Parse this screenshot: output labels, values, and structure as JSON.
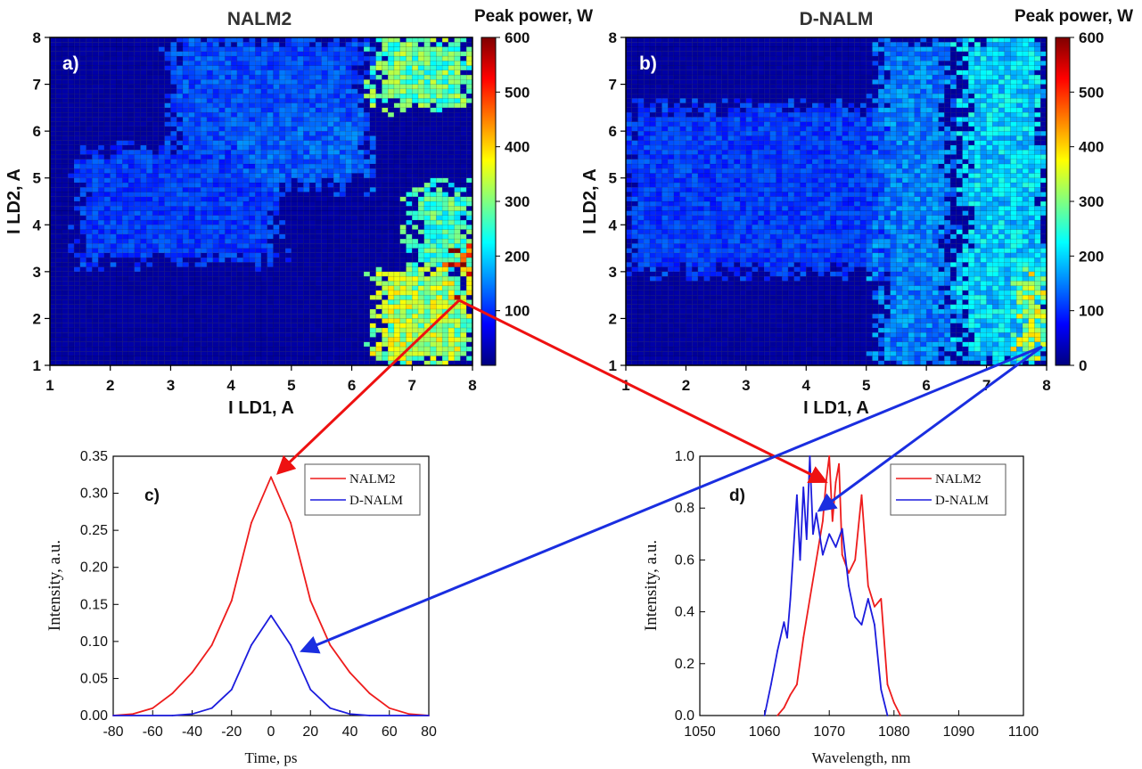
{
  "colors": {
    "nalm2": "#ee1c1c",
    "dnalm": "#1c1cdd",
    "arrow_red": "#ee1111",
    "arrow_blue": "#1a2ee0",
    "colormap": [
      "#00007f",
      "#0000ff",
      "#0080ff",
      "#00ffff",
      "#80ff80",
      "#ffff00",
      "#ff8000",
      "#ff0000",
      "#7f0000"
    ]
  },
  "chart_data": [
    {
      "id": "a",
      "type": "heatmap",
      "panel_label": "a)",
      "title": "NALM2",
      "xlabel": "I LD1, A",
      "ylabel": "I LD2, A",
      "xlim": [
        1,
        8
      ],
      "ylim": [
        1,
        8
      ],
      "xticks": [
        "1",
        "2",
        "3",
        "4",
        "5",
        "6",
        "7",
        "8"
      ],
      "yticks": [
        "1",
        "2",
        "3",
        "4",
        "5",
        "6",
        "7",
        "8"
      ],
      "grid": true,
      "colorbar": {
        "label": "Peak power, W",
        "range": [
          0,
          600
        ],
        "ticks": [
          "100",
          "200",
          "300",
          "400",
          "500",
          "600"
        ]
      },
      "value_regions": [
        {
          "note": "background",
          "value": 20
        },
        {
          "x": [
            3.0,
            6.2
          ],
          "y": [
            5.2,
            8.0
          ],
          "value": 120
        },
        {
          "x": [
            1.5,
            4.8
          ],
          "y": [
            3.2,
            5.6
          ],
          "value": 110
        },
        {
          "x": [
            4.2,
            6.2
          ],
          "y": [
            4.8,
            6.4
          ],
          "value": 130
        },
        {
          "x": [
            6.4,
            8.0
          ],
          "y": [
            6.5,
            8.0
          ],
          "value": 280
        },
        {
          "x": [
            7.0,
            8.0
          ],
          "y": [
            3.0,
            4.8
          ],
          "value": 260
        },
        {
          "x": [
            6.4,
            8.0
          ],
          "y": [
            1.0,
            3.0
          ],
          "value": 320
        },
        {
          "x": [
            7.7,
            8.0
          ],
          "y": [
            2.6,
            3.6
          ],
          "value": 500
        }
      ]
    },
    {
      "id": "b",
      "type": "heatmap",
      "panel_label": "b)",
      "title": "D-NALM",
      "xlabel": "I LD1, A",
      "ylabel": "I LD2, A",
      "xlim": [
        1,
        8
      ],
      "ylim": [
        1,
        8
      ],
      "xticks": [
        "1",
        "2",
        "3",
        "4",
        "5",
        "6",
        "7",
        "8"
      ],
      "yticks": [
        "1",
        "2",
        "3",
        "4",
        "5",
        "6",
        "7",
        "8"
      ],
      "grid": true,
      "colorbar": {
        "label": "Peak power, W",
        "range": [
          0,
          600
        ],
        "ticks": [
          "0",
          "100",
          "200",
          "300",
          "400",
          "500",
          "600"
        ]
      },
      "value_regions": [
        {
          "note": "background",
          "value": 20
        },
        {
          "x": [
            1.0,
            6.0
          ],
          "y": [
            3.0,
            6.5
          ],
          "value": 110
        },
        {
          "x": [
            5.2,
            6.4
          ],
          "y": [
            1.0,
            8.0
          ],
          "value": 150
        },
        {
          "x": [
            6.6,
            8.0
          ],
          "y": [
            1.0,
            8.0
          ],
          "value": 200
        },
        {
          "x": [
            7.6,
            8.0
          ],
          "y": [
            1.2,
            3.0
          ],
          "value": 330
        }
      ]
    },
    {
      "id": "c",
      "type": "line",
      "panel_label": "c)",
      "xlabel": "Time, ps",
      "ylabel": "Intensity, a.u.",
      "xlim": [
        -80,
        80
      ],
      "ylim": [
        0,
        0.35
      ],
      "xticks": [
        "-80",
        "-60",
        "-40",
        "-20",
        "0",
        "20",
        "40",
        "60",
        "80"
      ],
      "yticks": [
        "0.00",
        "0.05",
        "0.10",
        "0.15",
        "0.20",
        "0.25",
        "0.30",
        "0.35"
      ],
      "legend_position": "top-right",
      "series": [
        {
          "name": "NALM2",
          "color_key": "nalm2",
          "x": [
            -80,
            -70,
            -60,
            -50,
            -40,
            -30,
            -20,
            -10,
            0,
            10,
            20,
            30,
            40,
            50,
            60,
            70,
            80
          ],
          "y": [
            0.0,
            0.002,
            0.01,
            0.03,
            0.058,
            0.095,
            0.155,
            0.26,
            0.322,
            0.26,
            0.155,
            0.095,
            0.058,
            0.03,
            0.01,
            0.002,
            0.0
          ]
        },
        {
          "name": "D-NALM",
          "color_key": "dnalm",
          "x": [
            -80,
            -50,
            -40,
            -30,
            -20,
            -10,
            0,
            10,
            20,
            30,
            40,
            50,
            80
          ],
          "y": [
            0.0,
            0.0,
            0.002,
            0.01,
            0.035,
            0.095,
            0.135,
            0.095,
            0.035,
            0.01,
            0.002,
            0.0,
            0.0
          ]
        }
      ]
    },
    {
      "id": "d",
      "type": "line",
      "panel_label": "d)",
      "xlabel": "Wavelength, nm",
      "ylabel": "Intensity, a.u.",
      "xlim": [
        1050,
        1100
      ],
      "ylim": [
        0,
        1.0
      ],
      "xticks": [
        "1050",
        "1060",
        "1070",
        "1080",
        "1090",
        "1100"
      ],
      "yticks": [
        "0.0",
        "0.2",
        "0.4",
        "0.6",
        "0.8",
        "1.0"
      ],
      "legend_position": "top-right",
      "series": [
        {
          "name": "NALM2",
          "color_key": "nalm2",
          "x": [
            1062,
            1063,
            1064,
            1065,
            1066,
            1067,
            1068,
            1069,
            1069.5,
            1070,
            1070.5,
            1071,
            1071.5,
            1072,
            1073,
            1074,
            1075,
            1076,
            1077,
            1078,
            1079,
            1080,
            1081
          ],
          "y": [
            0.0,
            0.03,
            0.08,
            0.12,
            0.3,
            0.45,
            0.6,
            0.75,
            0.9,
            1.0,
            0.75,
            0.9,
            0.97,
            0.62,
            0.55,
            0.6,
            0.85,
            0.5,
            0.42,
            0.45,
            0.12,
            0.05,
            0.0
          ]
        },
        {
          "name": "D-NALM",
          "color_key": "dnalm",
          "x": [
            1060,
            1061,
            1062,
            1063,
            1063.5,
            1064,
            1065,
            1065.5,
            1066,
            1066.5,
            1067,
            1067.5,
            1068,
            1069,
            1070,
            1071,
            1072,
            1073,
            1074,
            1075,
            1076,
            1077,
            1078,
            1079
          ],
          "y": [
            0.0,
            0.12,
            0.25,
            0.36,
            0.3,
            0.45,
            0.85,
            0.6,
            0.88,
            0.68,
            1.0,
            0.7,
            0.78,
            0.62,
            0.7,
            0.65,
            0.72,
            0.5,
            0.38,
            0.35,
            0.45,
            0.35,
            0.1,
            0.0
          ]
        }
      ]
    }
  ]
}
